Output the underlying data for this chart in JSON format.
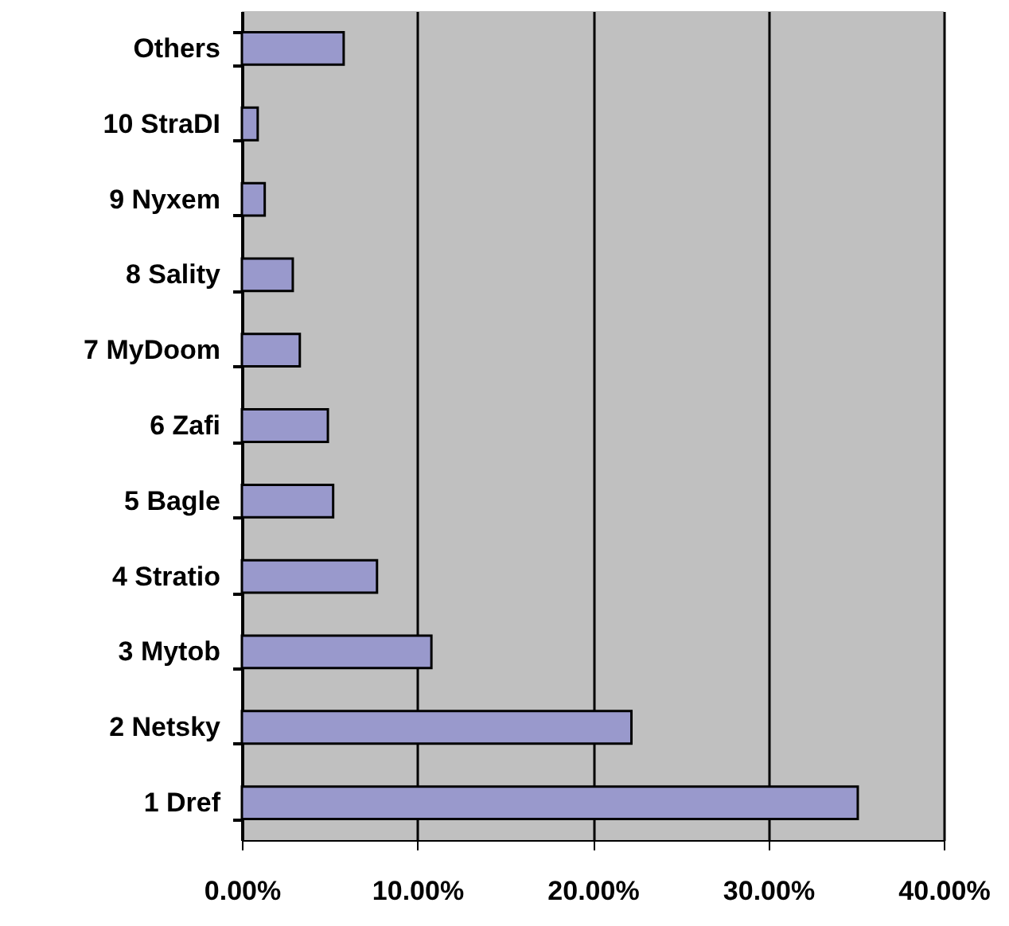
{
  "chart_data": {
    "type": "bar",
    "orientation": "horizontal",
    "categories": [
      "Others",
      "10 StraDI",
      "9 Nyxem",
      "8 Sality",
      "7 MyDoom",
      "6 Zafi",
      "5 Bagle",
      "4 Stratio",
      "3 Mytob",
      "2 Netsky",
      "1 Dref"
    ],
    "values": [
      5.8,
      0.9,
      1.3,
      2.9,
      3.3,
      4.9,
      5.2,
      7.7,
      10.8,
      22.2,
      35.1
    ],
    "color": "#9999cc",
    "xlim": [
      0,
      40
    ],
    "xticks": [
      {
        "value": 0,
        "label": "0.00%"
      },
      {
        "value": 10,
        "label": "10.00%"
      },
      {
        "value": 20,
        "label": "20.00%"
      },
      {
        "value": 30,
        "label": "30.00%"
      },
      {
        "value": 40,
        "label": "40.00%"
      }
    ],
    "grid": "x"
  }
}
